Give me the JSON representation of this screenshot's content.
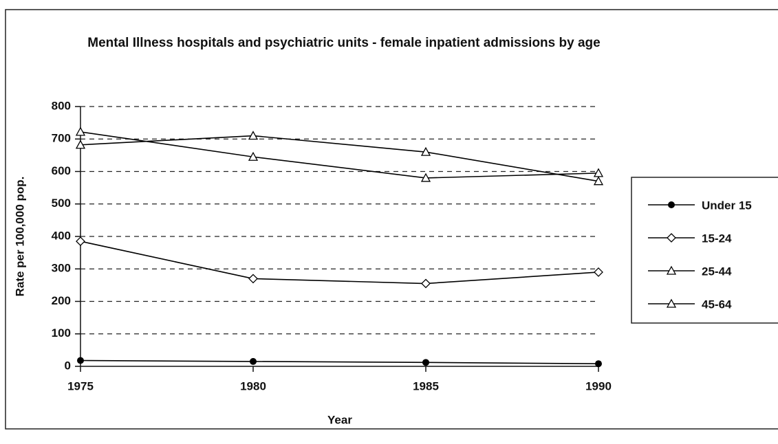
{
  "chart_data": {
    "type": "line",
    "title": "Mental Illness hospitals and psychiatric units - female inpatient admissions by age",
    "x_label": "Year",
    "y_label": "Rate per 100,000 pop.",
    "x": [
      1975,
      1980,
      1985,
      1990
    ],
    "xlim": [
      1975,
      1990
    ],
    "xticks": [
      1975,
      1980,
      1985,
      1990
    ],
    "ylim": [
      0,
      800
    ],
    "yticks": [
      0,
      100,
      200,
      300,
      400,
      500,
      600,
      700,
      800
    ],
    "grid": true,
    "legend": "right",
    "series": [
      {
        "name": "Under 15",
        "color": "#000000",
        "marker": "circle",
        "values": [
          18,
          15,
          12,
          8
        ]
      },
      {
        "name": "15-24",
        "color": "#000000",
        "marker": "diamond",
        "values": [
          385,
          270,
          255,
          290
        ]
      },
      {
        "name": "25-44",
        "color": "#000000",
        "marker": "triangle",
        "values": [
          722,
          645,
          580,
          595
        ]
      },
      {
        "name": "45-64",
        "color": "#000000",
        "marker": "triangle",
        "values": [
          682,
          710,
          660,
          570
        ]
      }
    ]
  }
}
